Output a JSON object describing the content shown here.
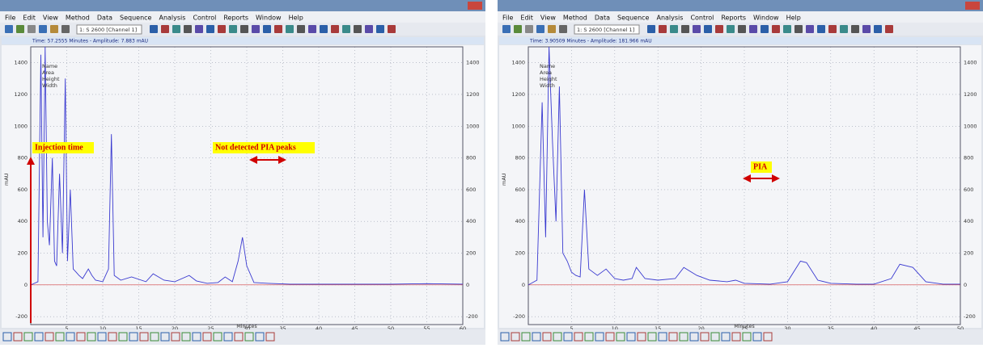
{
  "panels": [
    {
      "menu": [
        "File",
        "Edit",
        "View",
        "Method",
        "Data",
        "Sequence",
        "Analysis",
        "Control",
        "Reports",
        "Window",
        "Help"
      ],
      "channel": "1: S 2600 [Channel 1]",
      "status": "Time: 57.2555 Minutes - Amplitude: 7.883 mAU",
      "legend": [
        "Name",
        "Area",
        "Height",
        "Width"
      ],
      "annotations": [
        "Injection time",
        "Not detected PIA peaks"
      ],
      "chart": {
        "xlabel": "Minutes",
        "ylabel": "mAU",
        "xlim": [
          0,
          60
        ],
        "xticks": [
          5,
          10,
          15,
          20,
          25,
          30,
          35,
          40,
          45,
          50,
          55,
          60
        ],
        "ylim": [
          -250,
          1500
        ],
        "yticks": [
          -200,
          0,
          200,
          400,
          600,
          800,
          1000,
          1200,
          1400
        ],
        "color": "#3a3ad0",
        "x": [
          0,
          1,
          1.4,
          1.7,
          2,
          2.3,
          2.6,
          3,
          3.3,
          3.6,
          4,
          4.4,
          4.8,
          5.1,
          5.5,
          5.9,
          6.3,
          6.7,
          7.2,
          8,
          8.5,
          9,
          10,
          10.8,
          11.2,
          11.6,
          12.5,
          14,
          16,
          17,
          18.5,
          20,
          22,
          23,
          24.5,
          26,
          27,
          28,
          28.8,
          29.4,
          30,
          31,
          33,
          36,
          40,
          45,
          50,
          55,
          60
        ],
        "values": [
          0,
          20,
          1450,
          300,
          1500,
          400,
          250,
          800,
          150,
          120,
          700,
          200,
          1300,
          150,
          600,
          100,
          80,
          60,
          40,
          100,
          60,
          30,
          20,
          100,
          950,
          60,
          30,
          50,
          20,
          70,
          30,
          20,
          60,
          25,
          10,
          15,
          50,
          20,
          150,
          300,
          120,
          15,
          10,
          5,
          5,
          5,
          5,
          8,
          5
        ]
      }
    },
    {
      "menu": [
        "File",
        "Edit",
        "View",
        "Method",
        "Data",
        "Sequence",
        "Analysis",
        "Control",
        "Reports",
        "Window",
        "Help"
      ],
      "channel": "1: S 2600 [Channel 1]",
      "status": "Time: 3.90509 Minutes - Amplitude: 181.966 mAU",
      "legend": [
        "Name",
        "Area",
        "Height",
        "Width"
      ],
      "annotations": [
        "PIA"
      ],
      "chart": {
        "xlabel": "Minutes",
        "ylabel": "mAU",
        "xlim": [
          0,
          50
        ],
        "xticks": [
          5,
          10,
          15,
          20,
          25,
          30,
          35,
          40,
          45,
          50
        ],
        "ylim": [
          -250,
          1500
        ],
        "yticks": [
          -200,
          0,
          200,
          400,
          600,
          800,
          1000,
          1200,
          1400
        ],
        "color": "#3a3ad0",
        "x": [
          0,
          1,
          1.6,
          2,
          2.4,
          2.8,
          3.2,
          3.6,
          4,
          4.5,
          5,
          5.5,
          6,
          6.5,
          7,
          8,
          9,
          10,
          11,
          12,
          12.5,
          13.5,
          15,
          17,
          18,
          19.5,
          21,
          23,
          24,
          25,
          28,
          30,
          31.5,
          32.2,
          33.5,
          35,
          38,
          40,
          42,
          43,
          44.5,
          46,
          48,
          50
        ],
        "values": [
          0,
          30,
          1150,
          300,
          1500,
          900,
          400,
          1250,
          200,
          150,
          80,
          60,
          50,
          600,
          100,
          60,
          100,
          40,
          30,
          40,
          110,
          40,
          30,
          40,
          110,
          60,
          30,
          20,
          30,
          10,
          5,
          20,
          150,
          140,
          30,
          10,
          5,
          5,
          40,
          130,
          110,
          20,
          5,
          5
        ]
      }
    }
  ]
}
